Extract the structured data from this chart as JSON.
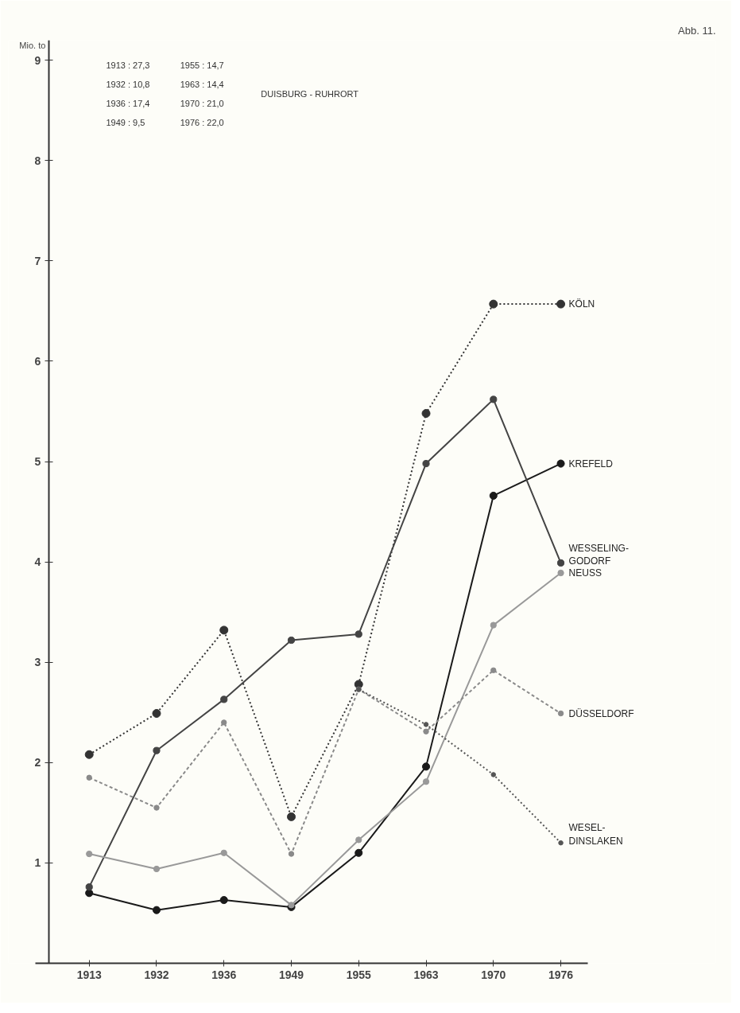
{
  "chart_data": {
    "type": "line",
    "title": "Abb. 11.",
    "ylabel": "Mio. to",
    "categories": [
      "1913",
      "1932",
      "1936",
      "1949",
      "1955",
      "1963",
      "1970",
      "1976"
    ],
    "series": [
      {
        "name": "KÖLN",
        "color": "#333333",
        "line_style": "dotted",
        "values": [
          2.08,
          2.49,
          3.32,
          1.46,
          2.78,
          5.48,
          6.57,
          6.57
        ]
      },
      {
        "name": "KREFELD",
        "color": "#1a1a1a",
        "line_style": "solid",
        "values": [
          0.7,
          0.53,
          0.63,
          0.56,
          1.1,
          1.96,
          4.66,
          4.98
        ]
      },
      {
        "name": "WESSELING-GODORF",
        "color": "#444444",
        "line_style": "solid",
        "values": [
          0.76,
          2.12,
          2.63,
          3.22,
          3.28,
          4.98,
          5.62,
          3.99
        ]
      },
      {
        "name": "NEUSS",
        "color": "#999999",
        "line_style": "solid",
        "values": [
          1.09,
          0.94,
          1.1,
          0.58,
          1.23,
          1.81,
          3.37,
          3.89
        ]
      },
      {
        "name": "DÜSSELDORF",
        "color": "#8a8a8a",
        "line_style": "dashed",
        "values": [
          1.85,
          1.55,
          2.4,
          1.09,
          2.73,
          2.31,
          2.92,
          2.49
        ]
      },
      {
        "name": "WESEL-DINSLAKEN",
        "color": "#555555",
        "line_style": "dotted",
        "values": [
          null,
          null,
          null,
          null,
          2.73,
          2.38,
          1.88,
          1.2
        ]
      }
    ],
    "ylim": [
      0,
      9.2
    ],
    "yticks": [
      1,
      2,
      3,
      4,
      5,
      6,
      7,
      8,
      9
    ],
    "annotations": [
      "1913 : 27,3",
      "1932 : 10,8",
      "1936 : 17,4",
      "1949 :   9,5",
      "1955 : 14,7",
      "1963 : 14,4",
      "1970 : 21,0",
      "1976 : 22,0",
      "DUISBURG - RUHRORT"
    ],
    "grid": false,
    "marker": "circle"
  }
}
